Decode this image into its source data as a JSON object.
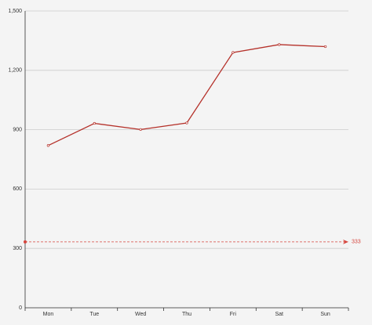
{
  "chart_data": {
    "type": "line",
    "categories": [
      "Mon",
      "Tue",
      "Wed",
      "Thu",
      "Fri",
      "Sat",
      "Sun"
    ],
    "values": [
      820,
      932,
      901,
      934,
      1290,
      1330,
      1320
    ],
    "color": "#b5312a",
    "ylim": [
      0,
      1500
    ],
    "yticks": [
      0,
      300,
      600,
      900,
      {
        "value": 1200,
        "label": "1,200"
      },
      {
        "value": 1500,
        "label": "1,500"
      }
    ],
    "grid": true,
    "mark_line": {
      "value": 333,
      "color": "#d6453d"
    }
  }
}
